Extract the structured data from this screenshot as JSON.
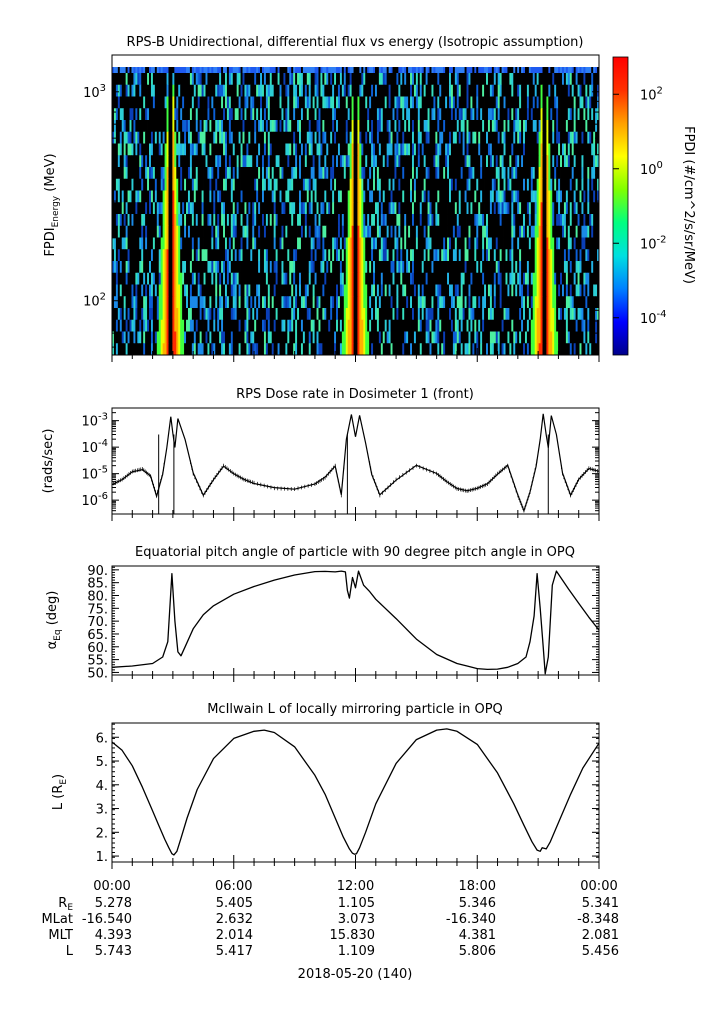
{
  "chart_data": [
    {
      "type": "heatmap",
      "title": "RPS-B  Unidirectional, differential flux vs energy (Isotropic assumption)",
      "ylabel": "FPDI",
      "ylabel_sub": "Energy",
      "ylabel_unit": "(MeV)",
      "yscale": "log",
      "ylim": [
        55,
        1500
      ],
      "yticks": [
        {
          "value": 100,
          "label": "10",
          "exp": "2"
        },
        {
          "value": 1000,
          "label": "10",
          "exp": "3"
        }
      ],
      "x_range_hours": [
        0,
        24
      ],
      "passes_hours": [
        2.9,
        12.0,
        21.3
      ],
      "colorbar": {
        "label": "FPDI (#/cm^2/s/sr/MeV)",
        "scale": "log",
        "range": [
          1e-05,
          1000
        ],
        "ticks": [
          {
            "value": 100,
            "label": "10",
            "exp": "2"
          },
          {
            "value": 1,
            "label": "10",
            "exp": "0"
          },
          {
            "value": 0.01,
            "label": "10",
            "exp": "-2"
          },
          {
            "value": 0.0001,
            "label": "10",
            "exp": "-4"
          }
        ],
        "colors": [
          "#00008b",
          "#0000ff",
          "#0080ff",
          "#00e0e0",
          "#00ff80",
          "#80ff00",
          "#ffff00",
          "#ffa000",
          "#ff3000",
          "#ff0000"
        ]
      }
    },
    {
      "type": "line",
      "title": "RPS  Dose rate in Dosimeter 1 (front)",
      "ylabel": "(rads/sec)",
      "yscale": "log",
      "ylim": [
        3e-07,
        0.003
      ],
      "yticks": [
        {
          "value": 0.001,
          "label": "10",
          "exp": "-3"
        },
        {
          "value": 0.0001,
          "label": "10",
          "exp": "-4"
        },
        {
          "value": 1e-05,
          "label": "10",
          "exp": "-5"
        },
        {
          "value": 1e-06,
          "label": "10",
          "exp": "-6"
        }
      ],
      "x": [
        0,
        0.5,
        1,
        1.5,
        1.9,
        2.2,
        2.5,
        2.7,
        2.9,
        3.0,
        3.1,
        3.25,
        3.6,
        4.0,
        4.5,
        5.0,
        5.5,
        6.0,
        6.5,
        7.0,
        8.0,
        9.0,
        10.0,
        10.5,
        11.0,
        11.3,
        11.55,
        11.8,
        12.0,
        12.2,
        12.5,
        12.8,
        13.2,
        14.0,
        15.0,
        16.0,
        16.5,
        17.0,
        17.5,
        18.0,
        18.5,
        19.0,
        19.5,
        20.0,
        20.3,
        20.6,
        20.9,
        21.1,
        21.25,
        21.4,
        21.5,
        21.65,
        21.9,
        22.2,
        22.6,
        23.0,
        23.5,
        24.0
      ],
      "y": [
        4e-06,
        6e-06,
        1.2e-05,
        1.5e-05,
        8e-06,
        1.5e-06,
        1e-05,
        0.0001,
        0.0015,
        0.0003,
        0.0001,
        0.0012,
        0.0002,
        1e-05,
        1.5e-06,
        6e-06,
        2e-05,
        1e-05,
        6e-06,
        4.5e-06,
        2.8e-06,
        2.6e-06,
        4e-06,
        7e-06,
        2e-05,
        1.5e-06,
        0.0002,
        0.0018,
        0.00025,
        0.0016,
        0.00015,
        1e-05,
        1.5e-06,
        6e-06,
        2e-05,
        1e-05,
        5e-06,
        2.7e-06,
        2.2e-06,
        2.8e-06,
        4e-06,
        1e-05,
        2e-05,
        1.5e-06,
        4e-07,
        2e-06,
        2e-05,
        0.0002,
        0.0017,
        0.0003,
        0.0001,
        0.0016,
        0.0003,
        1e-05,
        1.5e-06,
        6e-06,
        1.6e-05,
        1.2e-05
      ],
      "dropouts_hours": [
        2.3,
        3.05,
        11.6,
        21.5
      ]
    },
    {
      "type": "line",
      "title": "Equatorial pitch angle of particle with 90 degree pitch angle in OPQ",
      "ylabel": "α",
      "ylabel_sub": "Eq",
      "ylabel_unit": "(deg)",
      "ylim": [
        49,
        91.5
      ],
      "yticks": [
        50,
        55,
        60,
        65,
        70,
        75,
        80,
        85,
        90
      ],
      "ytick_labels": [
        "50.",
        "55.",
        "60.",
        "65.",
        "70.",
        "75.",
        "80.",
        "85.",
        "90."
      ],
      "x": [
        0,
        1.0,
        2.0,
        2.5,
        2.75,
        2.95,
        3.1,
        3.25,
        3.4,
        3.6,
        4.0,
        4.5,
        5.0,
        6.0,
        7.0,
        8.0,
        9.0,
        10.0,
        10.5,
        11.0,
        11.3,
        11.5,
        11.6,
        11.7,
        11.85,
        12.0,
        12.15,
        12.4,
        12.7,
        13.0,
        14.0,
        15.0,
        16.0,
        17.0,
        17.5,
        18.0,
        18.5,
        19.0,
        19.5,
        20.0,
        20.4,
        20.6,
        20.8,
        20.95,
        21.1,
        21.25,
        21.35,
        21.5,
        21.7,
        21.9,
        22.2,
        22.5,
        23.0,
        23.5,
        24.0
      ],
      "y": [
        52,
        52.5,
        53.5,
        56,
        62,
        88.5,
        70,
        58,
        56.5,
        60,
        67,
        72.5,
        76,
        80.5,
        83.5,
        86,
        88,
        89.3,
        89.4,
        89.2,
        89.5,
        89.2,
        82,
        79,
        87,
        83,
        89.5,
        84,
        81.5,
        78.5,
        71,
        63,
        57,
        53.5,
        52.5,
        51.5,
        51.2,
        51.3,
        52,
        53.5,
        56,
        62,
        72,
        88.5,
        75,
        60,
        49.5,
        56,
        84,
        89.5,
        86,
        82.5,
        77,
        71.5,
        66.5
      ]
    },
    {
      "type": "line",
      "title": "McIlwain L of locally mirroring particle in OPQ",
      "ylabel": "L (R",
      "ylabel_sub": "E",
      "ylabel_unit": ")",
      "ylim": [
        0.75,
        6.6
      ],
      "yticks": [
        1,
        2,
        3,
        4,
        5,
        6
      ],
      "ytick_labels": [
        "1.",
        "2.",
        "3.",
        "4.",
        "5.",
        "6."
      ],
      "x": [
        0,
        0.5,
        1.0,
        1.5,
        2.0,
        2.3,
        2.6,
        2.8,
        2.95,
        3.05,
        3.2,
        3.4,
        3.7,
        4.2,
        5.0,
        6.0,
        7.0,
        7.5,
        8.0,
        9.0,
        10.0,
        10.5,
        11.0,
        11.4,
        11.7,
        11.85,
        11.95,
        12.05,
        12.2,
        12.5,
        13.0,
        14.0,
        15.0,
        16.0,
        16.5,
        17.0,
        18.0,
        19.0,
        19.8,
        20.3,
        20.7,
        20.95,
        21.1,
        21.2,
        21.4,
        21.6,
        22.0,
        22.6,
        23.2,
        24.0
      ],
      "y": [
        5.8,
        5.45,
        4.8,
        3.9,
        2.9,
        2.3,
        1.7,
        1.35,
        1.1,
        1.05,
        1.2,
        1.75,
        2.6,
        3.8,
        5.1,
        5.95,
        6.25,
        6.3,
        6.2,
        5.6,
        4.4,
        3.6,
        2.6,
        1.8,
        1.3,
        1.12,
        1.08,
        1.1,
        1.35,
        2.0,
        3.2,
        4.9,
        5.9,
        6.3,
        6.35,
        6.25,
        5.7,
        4.5,
        3.2,
        2.3,
        1.6,
        1.25,
        1.2,
        1.35,
        1.3,
        1.6,
        2.4,
        3.6,
        4.7,
        5.75
      ]
    }
  ],
  "x_axis": {
    "tick_labels": [
      "00:00",
      "06:00",
      "12:00",
      "18:00",
      "00:00"
    ],
    "tick_hours": [
      0,
      6,
      12,
      18,
      24
    ],
    "date_label": "2018-05-20 (140)"
  },
  "ephemeris": {
    "rows": [
      {
        "name": "R",
        "sub": "E",
        "values": [
          "5.278",
          "5.405",
          "1.105",
          "5.346",
          "5.341"
        ]
      },
      {
        "name": "MLat",
        "sub": "",
        "values": [
          "-16.540",
          "2.632",
          "3.073",
          "-16.340",
          "-8.348"
        ]
      },
      {
        "name": "MLT",
        "sub": "",
        "values": [
          "4.393",
          "2.014",
          "15.830",
          "4.381",
          "2.081"
        ]
      },
      {
        "name": "L",
        "sub": "",
        "values": [
          "5.743",
          "5.417",
          "1.109",
          "5.806",
          "5.456"
        ]
      }
    ]
  }
}
